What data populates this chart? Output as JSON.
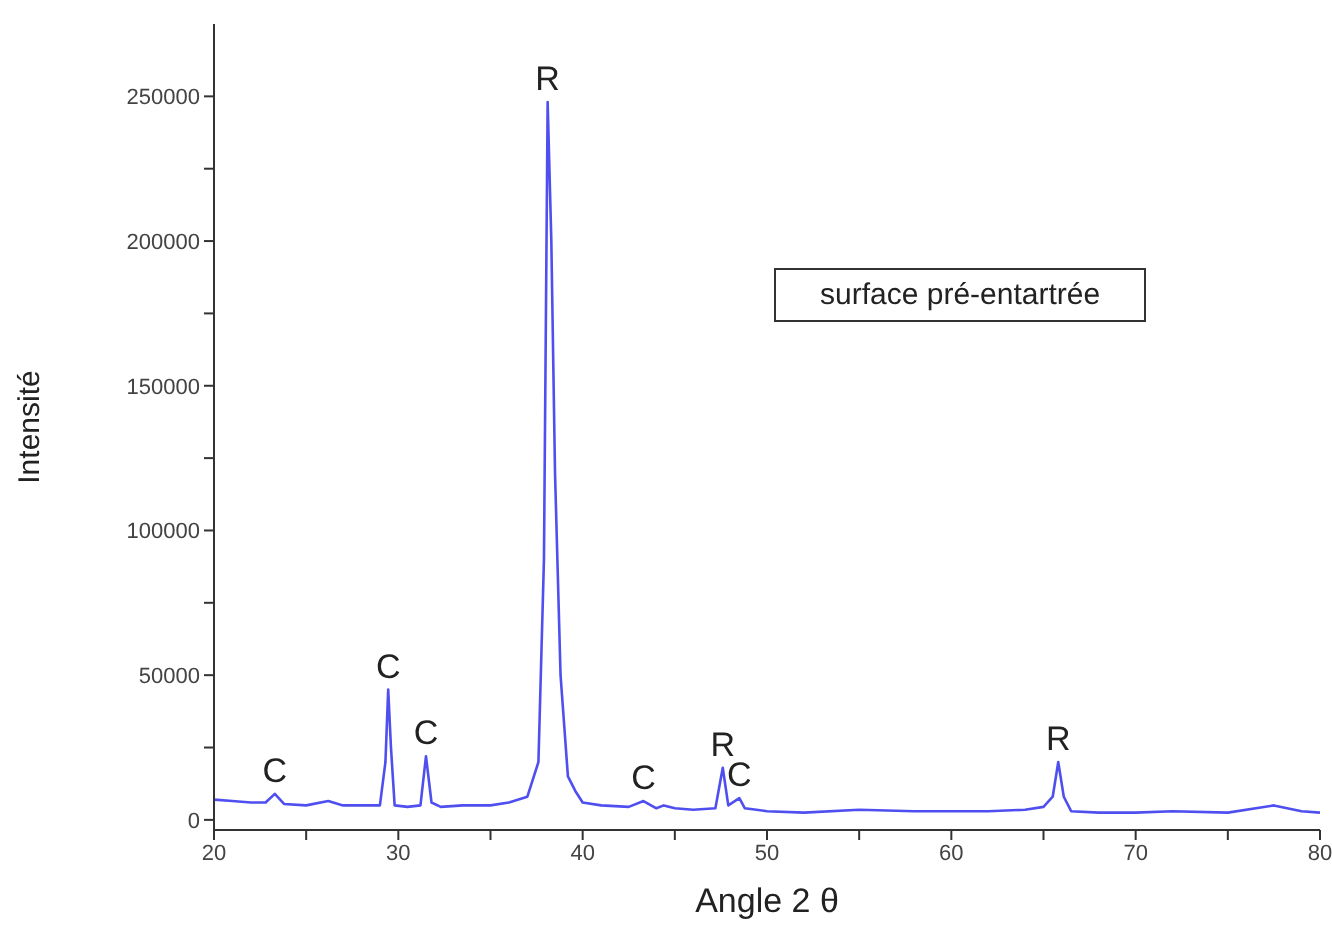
{
  "chart_data": {
    "type": "line",
    "xlabel": "Angle 2 θ",
    "ylabel": "Intensité",
    "xlim": [
      20,
      80
    ],
    "xticks": [
      20,
      {
        "value": 25,
        "label": null
      },
      30,
      {
        "value": 35,
        "label": null
      },
      40,
      {
        "value": 45,
        "label": null
      },
      50,
      {
        "value": 55,
        "label": null
      },
      60,
      {
        "value": 65,
        "label": null
      },
      70,
      {
        "value": 75,
        "label": null
      },
      80
    ],
    "ylim": [
      -3500,
      275000
    ],
    "yticks": [
      0,
      {
        "value": 25000,
        "label": null
      },
      50000,
      {
        "value": 75000,
        "label": null
      },
      100000,
      {
        "value": 125000,
        "label": null
      },
      150000,
      {
        "value": 175000,
        "label": null
      },
      200000,
      {
        "value": 225000,
        "label": null
      },
      250000
    ],
    "grid": false,
    "marker": "none",
    "line_style": "solid",
    "series": [
      {
        "color": "#4f4ff0",
        "x": [
          20,
          21,
          22,
          22.8,
          23.3,
          23.8,
          25,
          26.2,
          27,
          28,
          29,
          29.3,
          29.45,
          29.6,
          29.8,
          30.5,
          31.2,
          31.5,
          31.8,
          32.3,
          33.5,
          35,
          36,
          37,
          37.6,
          37.9,
          38.1,
          38.3,
          38.5,
          38.8,
          39.2,
          39.6,
          40,
          41,
          42.5,
          43.3,
          44,
          44.4,
          45,
          46,
          47.2,
          47.6,
          47.9,
          48.5,
          48.8,
          50,
          52,
          55,
          58,
          60,
          62,
          64,
          65,
          65.5,
          65.8,
          66.1,
          66.5,
          68,
          70,
          72,
          75,
          77.5,
          79,
          80
        ],
        "values": [
          7000,
          6500,
          6000,
          6000,
          9000,
          5500,
          5000,
          6500,
          5000,
          5000,
          5000,
          20000,
          45000,
          25000,
          5000,
          4500,
          5000,
          22000,
          6000,
          4500,
          5000,
          5000,
          6000,
          8000,
          20000,
          90000,
          248000,
          200000,
          120000,
          50000,
          15000,
          10000,
          6000,
          5000,
          4500,
          6500,
          4000,
          5000,
          4000,
          3500,
          4000,
          18000,
          5000,
          7500,
          4000,
          3000,
          2500,
          3500,
          3000,
          3000,
          3000,
          3500,
          4500,
          8000,
          20000,
          8000,
          3000,
          2500,
          2500,
          3000,
          2500,
          5000,
          3000,
          2500
        ]
      }
    ],
    "annotations": [
      {
        "text": "C",
        "x": 23.3,
        "y": 9000
      },
      {
        "text": "C",
        "x": 29.45,
        "y": 45000
      },
      {
        "text": "C",
        "x": 31.5,
        "y": 22000
      },
      {
        "text": "R",
        "x": 38.1,
        "y": 248000
      },
      {
        "text": "C",
        "x": 43.3,
        "y": 6500
      },
      {
        "text": "R",
        "x": 47.6,
        "y": 18000
      },
      {
        "text": "C",
        "x": 48.5,
        "y": 7500
      },
      {
        "text": "R",
        "x": 65.8,
        "y": 20000
      },
      "surface pré-entartrée"
    ]
  }
}
